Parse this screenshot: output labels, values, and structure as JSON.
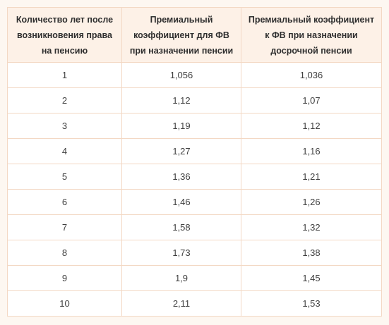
{
  "table": {
    "headers": [
      "Количество лет после возникновения права на пенсию",
      "Премиальный коэффициент для ФВ при назначении пенсии",
      "Премиальный коэффициент к ФВ при назначении досрочной пенсии"
    ],
    "rows": [
      [
        "1",
        "1,056",
        "1,036"
      ],
      [
        "2",
        "1,12",
        "1,07"
      ],
      [
        "3",
        "1,19",
        "1,12"
      ],
      [
        "4",
        "1,27",
        "1,16"
      ],
      [
        "5",
        "1,36",
        "1,21"
      ],
      [
        "6",
        "1,46",
        "1,26"
      ],
      [
        "7",
        "1,58",
        "1,32"
      ],
      [
        "8",
        "1,73",
        "1,38"
      ],
      [
        "9",
        "1,9",
        "1,45"
      ],
      [
        "10",
        "2,11",
        "1,53"
      ]
    ]
  },
  "colors": {
    "page_background": "#fdf7f1",
    "header_background": "#fdf1e7",
    "border": "#f3d8c4"
  }
}
